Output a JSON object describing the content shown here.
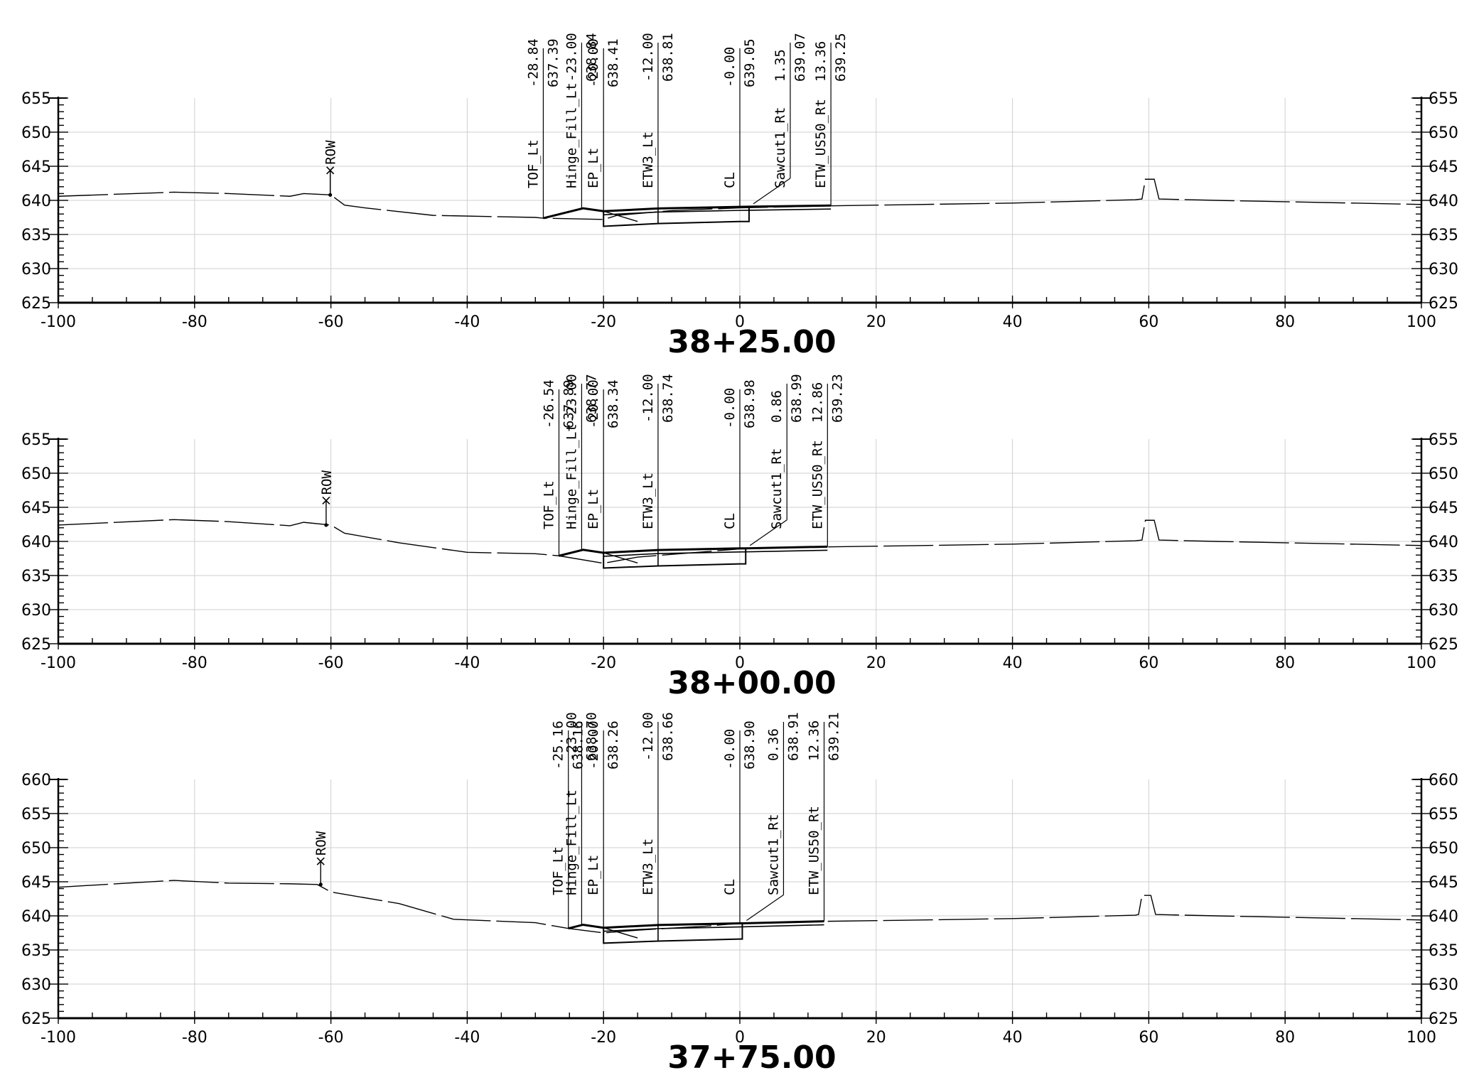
{
  "sheet": {
    "x_range": [
      -100,
      100
    ],
    "x_ticks": [
      "-100",
      "-80",
      "-60",
      "-40",
      "-20",
      "0",
      "20",
      "40",
      "60",
      "80",
      "100"
    ],
    "grid_color": "#cfcfcf",
    "line_color": "#000000"
  },
  "chart_data": [
    {
      "type": "line",
      "title": "38+25.00",
      "ylim": [
        625,
        655
      ],
      "y_ticks": [
        "625",
        "630",
        "635",
        "640",
        "645",
        "650",
        "655"
      ],
      "row_label": "ROW",
      "row": {
        "offset": -60.1,
        "elev": 640.8,
        "top": 644.4
      },
      "ground": [
        [
          -100,
          640.6
        ],
        [
          -83,
          641.2
        ],
        [
          -75,
          641.0
        ],
        [
          -66,
          640.6
        ],
        [
          -64,
          641.0
        ],
        [
          -60,
          640.8
        ],
        [
          -58,
          639.3
        ],
        [
          -55,
          638.9
        ],
        [
          -45,
          637.8
        ],
        [
          -30,
          637.5
        ],
        [
          -28.84,
          637.39
        ],
        [
          -20,
          637.2
        ],
        [
          -18,
          637.8
        ],
        [
          -10,
          638.5
        ],
        [
          0,
          638.9
        ],
        [
          13.36,
          639.2
        ],
        [
          20,
          639.3
        ],
        [
          40,
          639.6
        ],
        [
          58,
          640.1
        ],
        [
          59,
          640.2
        ],
        [
          59.5,
          643.1
        ],
        [
          60.8,
          643.1
        ],
        [
          61.5,
          640.2
        ],
        [
          70,
          640.0
        ],
        [
          80,
          639.8
        ],
        [
          100,
          639.4
        ]
      ],
      "ground_dash": true,
      "template": [
        [
          -28.84,
          637.39
        ],
        [
          -23.0,
          638.84
        ],
        [
          -20.0,
          638.41
        ],
        [
          -12.0,
          638.81
        ],
        [
          0.0,
          639.05
        ],
        [
          1.35,
          639.07
        ],
        [
          13.36,
          639.25
        ]
      ],
      "pavement_bottom": [
        [
          -20.0,
          636.2
        ],
        [
          -12.0,
          636.6
        ],
        [
          0.0,
          636.9
        ],
        [
          1.35,
          636.9
        ]
      ],
      "callouts": [
        {
          "name": "TOF_Lt",
          "offset": "-28.84",
          "elev": "637.39",
          "x": -28.84,
          "y": 637.39
        },
        {
          "name": "Hinge_Fill_Lt",
          "offset": "-23.00",
          "elev": "638.84",
          "x": -23.0,
          "y": 638.84
        },
        {
          "name": "EP_Lt",
          "offset": "-20.00",
          "elev": "638.41",
          "x": -20.0,
          "y": 638.41
        },
        {
          "name": "ETW3_Lt",
          "offset": "-12.00",
          "elev": "638.81",
          "x": -12.0,
          "y": 638.81
        },
        {
          "name": "CL",
          "offset": "-0.00",
          "elev": "639.05",
          "x": 0.0,
          "y": 639.05
        },
        {
          "name": "Sawcut1_Rt",
          "offset": "1.35",
          "elev": "639.07",
          "x": 1.35,
          "y": 639.07
        },
        {
          "name": "ETW_US50_Rt",
          "offset": "13.36",
          "elev": "639.25",
          "x": 13.36,
          "y": 639.25
        }
      ]
    },
    {
      "type": "line",
      "title": "38+00.00",
      "ylim": [
        625,
        655
      ],
      "y_ticks": [
        "625",
        "630",
        "635",
        "640",
        "645",
        "650",
        "655"
      ],
      "row_label": "ROW",
      "row": {
        "offset": -60.7,
        "elev": 642.4,
        "top": 646.0
      },
      "ground": [
        [
          -100,
          642.4
        ],
        [
          -83,
          643.2
        ],
        [
          -75,
          642.9
        ],
        [
          -66,
          642.3
        ],
        [
          -64,
          642.8
        ],
        [
          -60,
          642.4
        ],
        [
          -58,
          641.2
        ],
        [
          -50,
          639.8
        ],
        [
          -40,
          638.4
        ],
        [
          -30,
          638.2
        ],
        [
          -26.54,
          637.89
        ],
        [
          -20,
          636.8
        ],
        [
          -15,
          637.7
        ],
        [
          -5,
          638.5
        ],
        [
          0,
          638.9
        ],
        [
          12.86,
          639.2
        ],
        [
          20,
          639.3
        ],
        [
          40,
          639.6
        ],
        [
          58,
          640.1
        ],
        [
          59,
          640.2
        ],
        [
          59.5,
          643.1
        ],
        [
          60.8,
          643.1
        ],
        [
          61.5,
          640.2
        ],
        [
          70,
          640.0
        ],
        [
          80,
          639.8
        ],
        [
          100,
          639.4
        ]
      ],
      "ground_dash": true,
      "template": [
        [
          -26.54,
          637.89
        ],
        [
          -23.0,
          638.77
        ],
        [
          -20.0,
          638.34
        ],
        [
          -12.0,
          638.74
        ],
        [
          0.0,
          638.98
        ],
        [
          0.86,
          638.99
        ],
        [
          12.86,
          639.23
        ]
      ],
      "pavement_bottom": [
        [
          -20.0,
          636.1
        ],
        [
          -12.0,
          636.4
        ],
        [
          0.0,
          636.7
        ],
        [
          0.86,
          636.7
        ]
      ],
      "callouts": [
        {
          "name": "TOF_Lt",
          "offset": "-26.54",
          "elev": "637.89",
          "x": -26.54,
          "y": 637.89
        },
        {
          "name": "Hinge_Fill_Lt",
          "offset": "-23.00",
          "elev": "638.77",
          "x": -23.0,
          "y": 638.77
        },
        {
          "name": "EP_Lt",
          "offset": "-20.00",
          "elev": "638.34",
          "x": -20.0,
          "y": 638.34
        },
        {
          "name": "ETW3_Lt",
          "offset": "-12.00",
          "elev": "638.74",
          "x": -12.0,
          "y": 638.74
        },
        {
          "name": "CL",
          "offset": "-0.00",
          "elev": "638.98",
          "x": 0.0,
          "y": 638.98
        },
        {
          "name": "Sawcut1_Rt",
          "offset": "0.86",
          "elev": "638.99",
          "x": 0.86,
          "y": 638.99
        },
        {
          "name": "ETW_US50_Rt",
          "offset": "12.86",
          "elev": "639.23",
          "x": 12.86,
          "y": 639.23
        }
      ]
    },
    {
      "type": "line",
      "title": "37+75.00",
      "ylim": [
        625,
        660
      ],
      "y_ticks": [
        "625",
        "630",
        "635",
        "640",
        "645",
        "650",
        "655",
        "660"
      ],
      "row_label": "ROW",
      "row": {
        "offset": -61.5,
        "elev": 644.6,
        "top": 648.0
      },
      "ground": [
        [
          -100,
          644.2
        ],
        [
          -83,
          645.2
        ],
        [
          -75,
          644.8
        ],
        [
          -66,
          644.7
        ],
        [
          -62,
          644.6
        ],
        [
          -60,
          643.5
        ],
        [
          -50,
          641.8
        ],
        [
          -42,
          639.5
        ],
        [
          -30,
          639.0
        ],
        [
          -25.16,
          638.16
        ],
        [
          -20,
          637.5
        ],
        [
          -15,
          637.9
        ],
        [
          -5,
          638.5
        ],
        [
          0,
          638.9
        ],
        [
          12.36,
          639.2
        ],
        [
          20,
          639.3
        ],
        [
          40,
          639.6
        ],
        [
          58,
          640.1
        ],
        [
          58.5,
          640.2
        ],
        [
          59,
          643.0
        ],
        [
          60.3,
          643.0
        ],
        [
          61,
          640.2
        ],
        [
          70,
          640.0
        ],
        [
          80,
          639.8
        ],
        [
          100,
          639.4
        ]
      ],
      "ground_dash": true,
      "template": [
        [
          -25.16,
          638.16
        ],
        [
          -23.0,
          638.7
        ],
        [
          -20.0,
          638.26
        ],
        [
          -12.0,
          638.66
        ],
        [
          0.0,
          638.9
        ],
        [
          0.36,
          638.91
        ],
        [
          12.36,
          639.21
        ]
      ],
      "pavement_bottom": [
        [
          -20.0,
          636.0
        ],
        [
          -12.0,
          636.3
        ],
        [
          0.0,
          636.6
        ],
        [
          0.36,
          636.6
        ]
      ],
      "callouts": [
        {
          "name": "TOF_Lt",
          "offset": "-25.16",
          "elev": "638.16",
          "x": -25.16,
          "y": 638.16
        },
        {
          "name": "Hinge_Fill_Lt",
          "offset": "-23.00",
          "elev": "638.70",
          "x": -23.0,
          "y": 638.7
        },
        {
          "name": "EP_Lt",
          "offset": "-20.00",
          "elev": "638.26",
          "x": -20.0,
          "y": 638.26
        },
        {
          "name": "ETW3_Lt",
          "offset": "-12.00",
          "elev": "638.66",
          "x": -12.0,
          "y": 638.66
        },
        {
          "name": "CL",
          "offset": "-0.00",
          "elev": "638.90",
          "x": 0.0,
          "y": 638.9
        },
        {
          "name": "Sawcut1_Rt",
          "offset": "0.36",
          "elev": "638.91",
          "x": 0.36,
          "y": 638.91
        },
        {
          "name": "ETW_US50_Rt",
          "offset": "12.36",
          "elev": "639.21",
          "x": 12.36,
          "y": 639.21
        }
      ]
    }
  ]
}
